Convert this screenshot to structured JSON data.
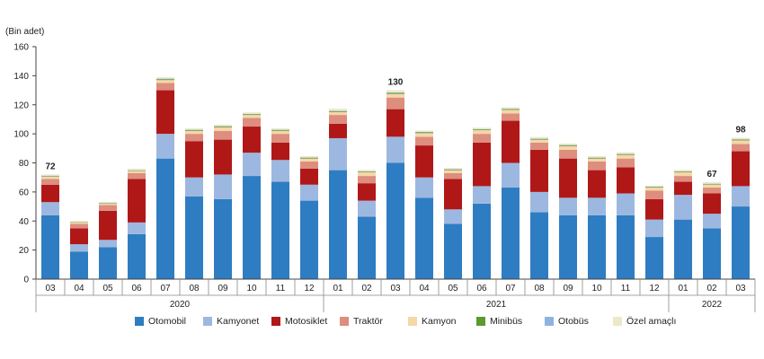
{
  "chart_data": {
    "type": "bar",
    "stacked": true,
    "ylabel": "(Bin adet)",
    "ylim": [
      0,
      160
    ],
    "yticks": [
      0,
      20,
      40,
      60,
      80,
      100,
      120,
      140,
      160
    ],
    "categories": [
      "03",
      "04",
      "05",
      "06",
      "07",
      "08",
      "09",
      "10",
      "11",
      "12",
      "01",
      "02",
      "03",
      "04",
      "05",
      "06",
      "07",
      "08",
      "09",
      "10",
      "11",
      "12",
      "01",
      "02",
      "03"
    ],
    "year_groups": [
      {
        "label": "2020",
        "start": 0,
        "end": 9
      },
      {
        "label": "2021",
        "start": 10,
        "end": 21
      },
      {
        "label": "2022",
        "start": 22,
        "end": 24
      }
    ],
    "data_labels": [
      {
        "index": 0,
        "text": "72"
      },
      {
        "index": 12,
        "text": "130"
      },
      {
        "index": 23,
        "text": "67"
      },
      {
        "index": 24,
        "text": "98"
      }
    ],
    "series": [
      {
        "name": "Otomobil",
        "color": "#2e7dc2",
        "values": [
          44,
          19,
          22,
          31,
          83,
          57,
          55,
          71,
          67,
          54,
          75,
          43,
          80,
          56,
          38,
          52,
          63,
          46,
          44,
          44,
          44,
          29,
          41,
          35,
          50
        ]
      },
      {
        "name": "Kamyonet",
        "color": "#9db8e0",
        "values": [
          9,
          5,
          5,
          8,
          17,
          13,
          17,
          16,
          15,
          11,
          22,
          11,
          18,
          14,
          10,
          12,
          17,
          14,
          12,
          12,
          15,
          12,
          17,
          10,
          14
        ]
      },
      {
        "name": "Motosiklet",
        "color": "#b01818",
        "values": [
          12,
          11,
          20,
          30,
          30,
          25,
          24,
          18,
          12,
          11,
          10,
          12,
          19,
          22,
          21,
          30,
          29,
          29,
          27,
          19,
          18,
          14,
          9,
          14,
          24
        ]
      },
      {
        "name": "Traktör",
        "color": "#dd8e7e",
        "values": [
          4,
          3,
          4,
          4,
          5,
          5,
          6,
          6,
          6,
          5,
          6,
          5,
          8,
          6,
          4,
          6,
          5,
          5,
          6,
          6,
          6,
          6,
          4,
          4,
          5
        ]
      },
      {
        "name": "Kamyon",
        "color": "#f7d6a8",
        "values": [
          1.5,
          1,
          1,
          1.5,
          2,
          2,
          2.5,
          2,
          2,
          2,
          2,
          2.5,
          2.5,
          2.5,
          2,
          2.5,
          2.5,
          2,
          2.5,
          2,
          2.5,
          2,
          2.5,
          2,
          2.5
        ]
      },
      {
        "name": "Minibüs",
        "color": "#5a9a2e",
        "values": [
          0.4,
          0.2,
          0.3,
          0.3,
          0.6,
          0.5,
          0.5,
          0.5,
          0.5,
          0.4,
          0.5,
          0.4,
          0.6,
          0.5,
          0.4,
          0.5,
          0.5,
          0.5,
          0.5,
          0.5,
          0.5,
          0.4,
          0.4,
          0.4,
          0.5
        ]
      },
      {
        "name": "Otobüs",
        "color": "#8fb3e0",
        "values": [
          0.3,
          0.2,
          0.2,
          0.2,
          0.4,
          0.3,
          0.3,
          0.3,
          0.3,
          0.3,
          0.3,
          0.3,
          0.4,
          0.3,
          0.3,
          0.3,
          0.3,
          0.3,
          0.3,
          0.3,
          0.3,
          0.3,
          0.3,
          0.3,
          0.3
        ]
      },
      {
        "name": "Özel amaçlı",
        "color": "#ede8c8",
        "values": [
          0.8,
          0.6,
          0.7,
          1,
          1,
          1,
          1,
          1,
          1,
          1,
          1.5,
          1,
          1.5,
          1,
          0.8,
          1,
          1,
          1,
          1,
          0.9,
          1,
          0.7,
          1,
          1,
          1
        ]
      }
    ]
  }
}
